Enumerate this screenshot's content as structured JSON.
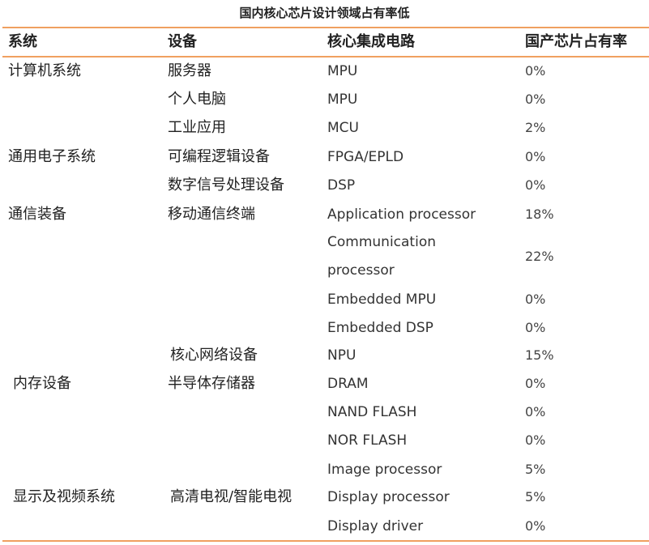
{
  "title": "国内核心芯片设计领域占有率低",
  "headers": [
    "系统",
    "设备",
    "核心集成电路",
    "国产芯片占有率"
  ],
  "colors": {
    "rule": "#f0a060"
  },
  "rows": [
    {
      "system": "计算机系统",
      "device": "服务器",
      "ic": "MPU",
      "share": "0%"
    },
    {
      "system": "",
      "device": "个人电脑",
      "ic": "MPU",
      "share": "0%"
    },
    {
      "system": "",
      "device": "工业应用",
      "ic": "MCU",
      "share": "2%"
    },
    {
      "system": "通用电子系统",
      "device": "可编程逻辑设备",
      "ic": "FPGA/EPLD",
      "share": "0%"
    },
    {
      "system": "",
      "device": "数字信号处理设备",
      "ic": "DSP",
      "share": "0%"
    },
    {
      "system": "通信装备",
      "device": "移动通信终端",
      "ic": "Application processor",
      "share": "18%"
    },
    {
      "system": "",
      "device": "",
      "ic": "Communication",
      "share": "22%"
    },
    {
      "system": "",
      "device": "",
      "ic": "processor",
      "share": ""
    },
    {
      "system": "",
      "device": "",
      "ic": "Embedded MPU",
      "share": "0%"
    },
    {
      "system": "",
      "device": "",
      "ic": "Embedded DSP",
      "share": "0%"
    },
    {
      "system": "",
      "device": "核心网络设备",
      "ic": "NPU",
      "share": "15%"
    },
    {
      "system": "内存设备",
      "device": "半导体存储器",
      "ic": "DRAM",
      "share": "0%"
    },
    {
      "system": "",
      "device": "",
      "ic": "NAND FLASH",
      "share": "0%"
    },
    {
      "system": "",
      "device": "",
      "ic": "NOR FLASH",
      "share": "0%"
    },
    {
      "system": "",
      "device": "",
      "ic": "Image processor",
      "share": "5%"
    },
    {
      "system": "显示及视频系统",
      "device": "高清电视/智能电视",
      "ic": "Display processor",
      "share": "5%"
    },
    {
      "system": "",
      "device": "",
      "ic": "Display driver",
      "share": "0%"
    }
  ]
}
